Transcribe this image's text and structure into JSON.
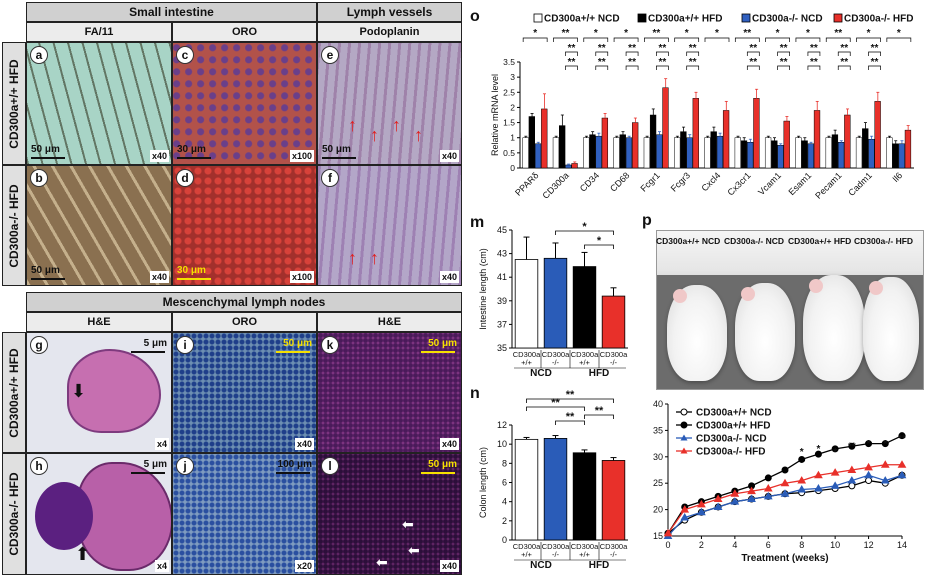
{
  "left_panel": {
    "section_small_intestine": "Small intestine",
    "section_lymph_vessels": "Lymph vessels",
    "section_lymph_nodes": "Mescenchymal lymph nodes",
    "col_fa11": "FA/11",
    "col_oro_top": "ORO",
    "col_podoplanin": "Podoplanin",
    "col_he_left": "H&E",
    "col_oro_bottom": "ORO",
    "col_he_right": "H&E",
    "row_wt": "CD300a+/+ HFD",
    "row_ko": "CD300a-/- HFD",
    "row_wt2": "CD300a+/+ HFD",
    "row_ko2": "CD300a-/- HFD"
  },
  "tiles": [
    {
      "letter": "a",
      "mag": "x40",
      "scale": "50 μm",
      "color": "#a8d4c6"
    },
    {
      "letter": "c",
      "mag": "x100",
      "scale": "30 μm",
      "color": "#b2524a"
    },
    {
      "letter": "e",
      "mag": "x40",
      "scale": "50 μm",
      "color": "#b4a8c4"
    },
    {
      "letter": "b",
      "mag": "x40",
      "scale": "50 μm",
      "color": "#8a7050"
    },
    {
      "letter": "d",
      "mag": "x100",
      "scale": "30 μm",
      "color": "#a3302c"
    },
    {
      "letter": "f",
      "mag": "x40",
      "scale": "",
      "color": "#b3a6c8"
    },
    {
      "letter": "g",
      "mag": "x4",
      "scale": "5 μm",
      "color": "#e4e6ee"
    },
    {
      "letter": "i",
      "mag": "x40",
      "scale": "50 μm",
      "color": "#6d8fb2"
    },
    {
      "letter": "k",
      "mag": "x40",
      "scale": "50 μm",
      "color": "#8a3a8a"
    },
    {
      "letter": "h",
      "mag": "x4",
      "scale": "5 μm",
      "color": "#e4e6ee"
    },
    {
      "letter": "j",
      "mag": "x20",
      "scale": "100 μm",
      "color": "#7f9cc0"
    },
    {
      "letter": "l",
      "mag": "x40",
      "scale": "50 μm",
      "color": "#6c2a6e"
    }
  ],
  "panel_o": {
    "letter": "o",
    "legend": [
      "CD300a+/+ NCD",
      "CD300a+/+ HFD",
      "CD300a-/- NCD",
      "CD300a-/- HFD"
    ],
    "ylabel": "Relative mRNA level",
    "yticks": [
      "0",
      "0.5",
      "1",
      "1.5",
      "2",
      "2.5",
      "3",
      "3.5"
    ],
    "sig_double": "**",
    "sig_single": "*"
  },
  "panel_m": {
    "letter": "m",
    "ylabel": "Intestine length (cm)",
    "yticks": [
      "35",
      "37",
      "39",
      "41",
      "43",
      "45"
    ],
    "xticks": [
      "CD300a +/+",
      "CD300a -/-",
      "CD300a +/+",
      "CD300a -/-"
    ],
    "groups": [
      "NCD",
      "HFD"
    ],
    "sig": "*"
  },
  "panel_n": {
    "letter": "n",
    "ylabel": "Colon length (cm)",
    "yticks": [
      "0",
      "2",
      "4",
      "6",
      "8",
      "10",
      "12"
    ],
    "xticks": [
      "CD300a +/+",
      "CD300a -/-",
      "CD300a +/+",
      "CD300a -/-"
    ],
    "groups": [
      "NCD",
      "HFD"
    ],
    "sig": "**"
  },
  "panel_p": {
    "letter": "p",
    "labels": [
      "CD300a+/+ NCD",
      "CD300a-/- NCD",
      "CD300a+/+ HFD",
      "CD300a-/- HFD"
    ]
  },
  "panel_weight": {
    "ylabel": "Body weight (g)",
    "xlabel": "Treatment (weeks)",
    "legend": [
      "CD300a+/+ NCD",
      "CD300a+/+ HFD",
      "CD300a-/- NCD",
      "CD300a-/- HFD"
    ],
    "yticks": [
      "15",
      "20",
      "25",
      "30",
      "35",
      "40"
    ],
    "xticks": [
      "0",
      "2",
      "4",
      "6",
      "8",
      "10",
      "12",
      "14"
    ],
    "star": "*",
    "dstar": "**"
  },
  "chart_data": [
    {
      "type": "bar",
      "panel": "o",
      "categories": [
        "PPARδ",
        "CD300a",
        "CD34",
        "CD68",
        "Fcgr1",
        "Fcgr3",
        "Cxcl4",
        "Cx3cr1",
        "Vcam1",
        "Esam1",
        "Pecam1",
        "Cadm1",
        "Il6"
      ],
      "ylim": [
        0,
        3.5
      ],
      "series": [
        {
          "name": "CD300a+/+ NCD",
          "color": "#ffffff",
          "values": [
            1.0,
            1.0,
            1.0,
            1.0,
            1.0,
            1.0,
            1.0,
            1.0,
            1.0,
            1.0,
            1.0,
            1.0,
            1.0
          ]
        },
        {
          "name": "CD300a+/+ HFD",
          "color": "#000000",
          "values": [
            1.7,
            1.4,
            1.1,
            1.1,
            1.75,
            1.2,
            1.2,
            0.9,
            0.9,
            0.9,
            1.1,
            1.3,
            0.8
          ]
        },
        {
          "name": "CD300a-/- NCD",
          "color": "#3060c0",
          "values": [
            0.8,
            0.1,
            1.05,
            1.0,
            1.1,
            1.0,
            1.05,
            0.85,
            0.75,
            0.8,
            0.85,
            0.95,
            0.8
          ]
        },
        {
          "name": "CD300a-/- HFD",
          "color": "#e8302a",
          "values": [
            1.95,
            0.15,
            1.65,
            1.5,
            2.65,
            2.3,
            1.9,
            2.3,
            1.55,
            1.9,
            1.75,
            2.2,
            1.25
          ]
        }
      ],
      "errors": [
        [
          0.05,
          0.05,
          0.05,
          0.05,
          0.05,
          0.05,
          0.05,
          0.05,
          0.05,
          0.05,
          0.05,
          0.05,
          0.05
        ],
        [
          0.1,
          0.35,
          0.1,
          0.1,
          0.2,
          0.15,
          0.15,
          0.1,
          0.1,
          0.1,
          0.15,
          0.2,
          0.1
        ],
        [
          0.05,
          0.03,
          0.1,
          0.05,
          0.1,
          0.1,
          0.1,
          0.1,
          0.05,
          0.05,
          0.05,
          0.1,
          0.1
        ],
        [
          0.5,
          0.05,
          0.15,
          0.15,
          0.3,
          0.2,
          0.3,
          0.3,
          0.15,
          0.3,
          0.2,
          0.3,
          0.15
        ]
      ]
    },
    {
      "type": "bar",
      "panel": "m",
      "categories": [
        "CD300a +/+ NCD",
        "CD300a -/- NCD",
        "CD300a +/+ HFD",
        "CD300a -/- HFD"
      ],
      "values": [
        42.5,
        42.6,
        41.9,
        39.4
      ],
      "errors": [
        1.9,
        1.3,
        1.2,
        0.7
      ],
      "colors": [
        "#ffffff",
        "#2a5cb8",
        "#000000",
        "#e8302a"
      ],
      "ylabel": "Intestine length (cm)",
      "ylim": [
        35,
        45
      ]
    },
    {
      "type": "bar",
      "panel": "n",
      "categories": [
        "CD300a +/+ NCD",
        "CD300a -/- NCD",
        "CD300a +/+ HFD",
        "CD300a -/- HFD"
      ],
      "values": [
        10.5,
        10.6,
        9.1,
        8.3
      ],
      "errors": [
        0.2,
        0.3,
        0.3,
        0.3
      ],
      "colors": [
        "#ffffff",
        "#2a5cb8",
        "#000000",
        "#e8302a"
      ],
      "ylabel": "Colon length (cm)",
      "ylim": [
        0,
        12
      ]
    },
    {
      "type": "line",
      "panel": "weight",
      "xlabel": "Treatment (weeks)",
      "ylabel": "Body weight (g)",
      "xlim": [
        0,
        14
      ],
      "ylim": [
        15,
        40
      ],
      "x": [
        0,
        1,
        2,
        3,
        4,
        5,
        6,
        7,
        8,
        9,
        10,
        11,
        12,
        13,
        14
      ],
      "series": [
        {
          "name": "CD300a+/+ NCD",
          "color": "#000000",
          "marker": "open-circle",
          "values": [
            15.5,
            18.0,
            19.5,
            20.5,
            21.5,
            22.0,
            22.5,
            23.0,
            23.2,
            23.6,
            24.0,
            24.5,
            25.5,
            25.0,
            26.5
          ]
        },
        {
          "name": "CD300a+/+ HFD",
          "color": "#000000",
          "marker": "filled-circle",
          "values": [
            15.5,
            20.5,
            21.5,
            22.5,
            23.5,
            24.5,
            26.0,
            27.5,
            29.5,
            30.5,
            31.5,
            32.0,
            32.5,
            32.5,
            34.0
          ]
        },
        {
          "name": "CD300a-/- NCD",
          "color": "#2a5cb8",
          "marker": "triangle",
          "values": [
            15.0,
            18.5,
            19.5,
            20.5,
            21.5,
            22.0,
            22.5,
            23.0,
            23.8,
            24.0,
            24.5,
            25.5,
            26.5,
            25.5,
            26.5
          ]
        },
        {
          "name": "CD300a-/- HFD",
          "color": "#e8302a",
          "marker": "triangle",
          "values": [
            15.5,
            20.0,
            21.0,
            22.0,
            23.0,
            23.5,
            24.0,
            25.0,
            25.5,
            26.5,
            27.0,
            27.5,
            28.0,
            28.5,
            28.5
          ]
        }
      ]
    }
  ]
}
